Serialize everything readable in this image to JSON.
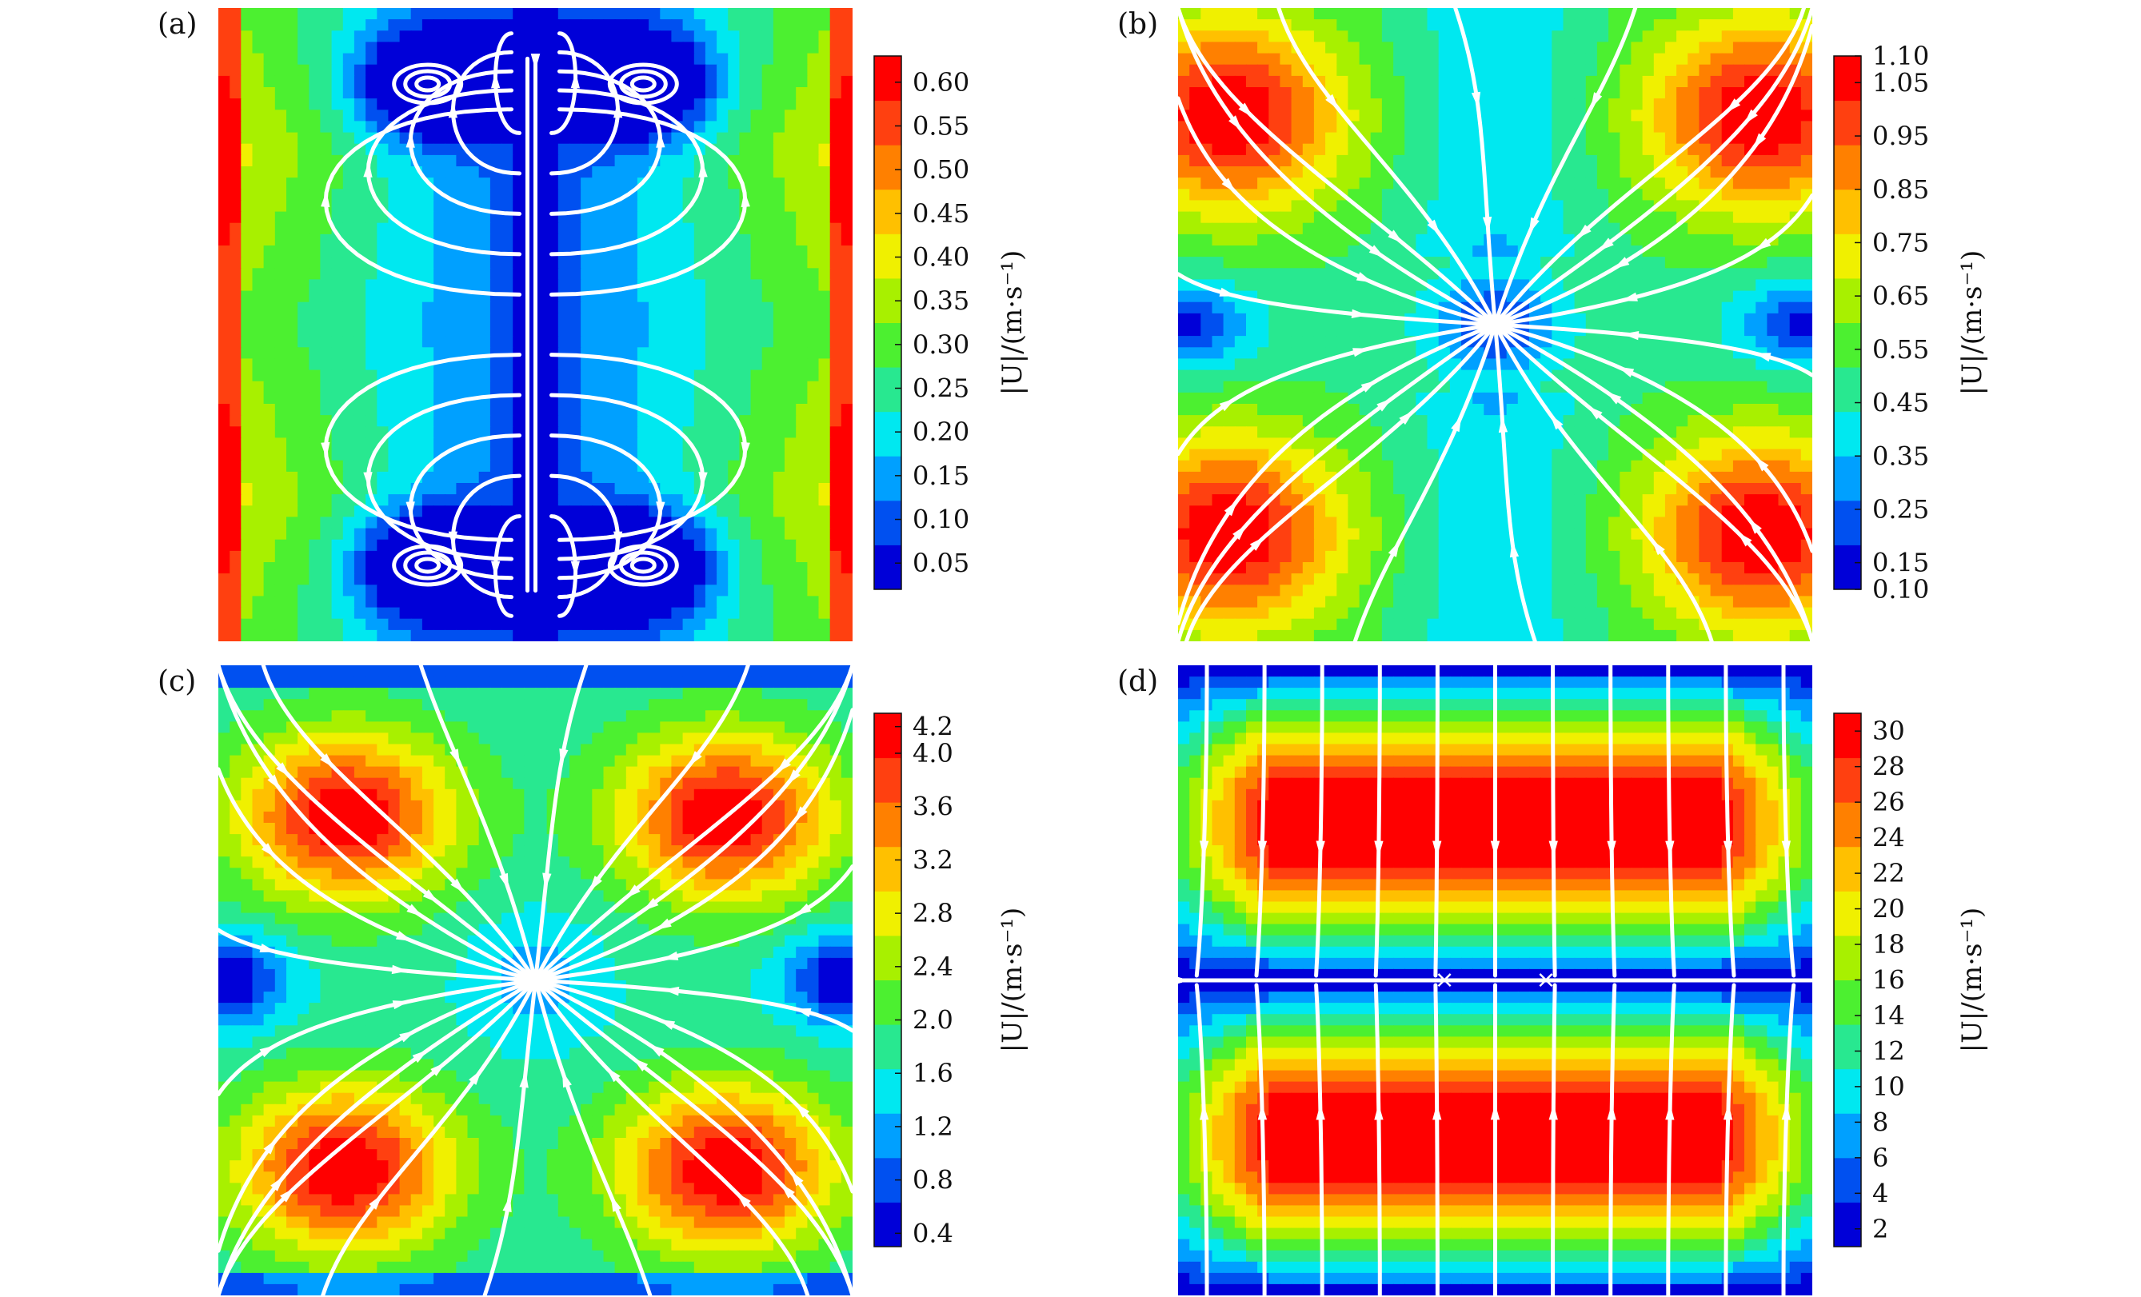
{
  "figure": {
    "colormap": [
      "#0000d8",
      "#0050f0",
      "#00a0ff",
      "#00e8f0",
      "#28e890",
      "#4cf030",
      "#a8f000",
      "#f0f000",
      "#ffc000",
      "#ff8000",
      "#ff4010",
      "#ff0000"
    ]
  },
  "chart_data": [
    {
      "type": "heatmap",
      "panel": "(a)",
      "description_kind": "velocity magnitude contour with streamlines",
      "colorbar_label": "|U|/(m·s⁻¹)",
      "colorbar_ticks": [
        "0.05",
        "0.10",
        "0.15",
        "0.20",
        "0.25",
        "0.30",
        "0.35",
        "0.40",
        "0.45",
        "0.50",
        "0.55",
        "0.60"
      ],
      "colorbar_range": [
        0.02,
        0.63
      ],
      "pattern": "four-vortex",
      "streamlines": "white"
    },
    {
      "type": "heatmap",
      "panel": "(b)",
      "colorbar_label": "|U|/(m·s⁻¹)",
      "colorbar_ticks": [
        "0.10",
        "0.15",
        "0.25",
        "0.35",
        "0.45",
        "0.55",
        "0.65",
        "0.75",
        "0.85",
        "0.95",
        "1.05",
        "1.10"
      ],
      "colorbar_range": [
        0.1,
        1.1
      ],
      "pattern": "x-shaped, central node",
      "streamlines": "white"
    },
    {
      "type": "heatmap",
      "panel": "(c)",
      "colorbar_label": "|U|/(m·s⁻¹)",
      "colorbar_ticks": [
        "0.4",
        "0.8",
        "1.2",
        "1.6",
        "2.0",
        "2.4",
        "2.8",
        "3.2",
        "3.6",
        "4.0",
        "4.2"
      ],
      "colorbar_range": [
        0.3,
        4.3
      ],
      "pattern": "x-shaped, central node",
      "streamlines": "white"
    },
    {
      "type": "heatmap",
      "panel": "(d)",
      "colorbar_label": "|U|/(m·s⁻¹)",
      "colorbar_ticks": [
        "2",
        "4",
        "6",
        "8",
        "10",
        "12",
        "14",
        "16",
        "18",
        "20",
        "22",
        "24",
        "26",
        "28",
        "30"
      ],
      "colorbar_range": [
        1,
        31
      ],
      "pattern": "horizontal bands, vertical streamlines",
      "streamlines": "white"
    }
  ]
}
